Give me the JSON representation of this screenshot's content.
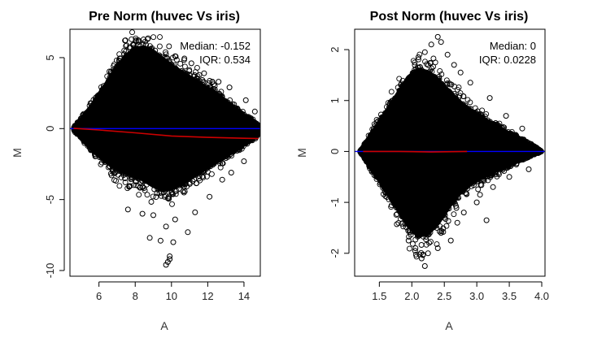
{
  "chart_data": [
    {
      "type": "scatter",
      "title": "Pre Norm (huvec Vs iris)",
      "xlabel": "A",
      "ylabel": "M",
      "xlim": [
        4.4,
        14.9
      ],
      "ylim": [
        -10.4,
        7.0
      ],
      "xticks": [
        6,
        8,
        10,
        12,
        14
      ],
      "yticks": [
        -10,
        -5,
        0,
        5
      ],
      "grid": false,
      "annotations": [
        "Median: -0.152",
        "IQR: 0.534"
      ],
      "cloud_envelope": {
        "x": [
          4.6,
          5.0,
          5.5,
          6.0,
          6.5,
          7.0,
          7.5,
          8.0,
          8.5,
          9.0,
          9.5,
          10.0,
          10.5,
          11.0,
          11.5,
          12.0,
          12.5,
          13.0,
          13.5,
          14.0,
          14.5,
          14.8
        ],
        "upper": [
          0.1,
          0.6,
          1.4,
          2.3,
          3.3,
          4.3,
          5.1,
          5.6,
          5.7,
          5.4,
          4.9,
          4.4,
          4.0,
          3.6,
          3.2,
          2.8,
          2.4,
          1.9,
          1.4,
          0.9,
          0.5,
          0.2
        ],
        "lower": [
          -0.1,
          -0.6,
          -1.3,
          -1.9,
          -2.4,
          -2.8,
          -3.1,
          -3.3,
          -3.6,
          -4.0,
          -4.3,
          -4.2,
          -3.9,
          -3.5,
          -3.1,
          -2.7,
          -2.3,
          -1.9,
          -1.5,
          -1.1,
          -0.7,
          -0.4
        ]
      },
      "outliers": [
        [
          9.7,
          -9.6
        ],
        [
          9.8,
          -9.4
        ],
        [
          9.9,
          -9.2
        ],
        [
          9.9,
          -9.0
        ],
        [
          10.1,
          -8.0
        ],
        [
          9.4,
          -7.9
        ],
        [
          8.8,
          -7.7
        ],
        [
          10.9,
          -7.3
        ],
        [
          9.7,
          -6.9
        ],
        [
          10.2,
          -6.4
        ],
        [
          9.0,
          -6.1
        ],
        [
          11.3,
          -5.9
        ],
        [
          7.6,
          -5.7
        ],
        [
          8.4,
          -6.0
        ],
        [
          12.1,
          -4.8
        ],
        [
          12.8,
          -3.6
        ],
        [
          13.3,
          -3.1
        ],
        [
          14.0,
          -2.3
        ],
        [
          8.2,
          6.1
        ],
        [
          8.6,
          5.9
        ],
        [
          9.1,
          5.5
        ],
        [
          10.2,
          5.1
        ],
        [
          11.1,
          4.6
        ],
        [
          11.8,
          3.9
        ],
        [
          12.6,
          3.3
        ],
        [
          13.2,
          2.9
        ],
        [
          14.1,
          2.0
        ],
        [
          14.6,
          1.2
        ],
        [
          11.4,
          3.5
        ],
        [
          12.2,
          2.6
        ],
        [
          7.1,
          4.8
        ],
        [
          6.6,
          3.6
        ]
      ],
      "series": [
        {
          "name": "",
          "color": "#0000ff",
          "style": "hline",
          "y": 0
        },
        {
          "name": "",
          "color": "#cc0000",
          "style": "line",
          "x": [
            4.6,
            6.0,
            8.0,
            10.0,
            12.0,
            14.0,
            14.8
          ],
          "y": [
            0.02,
            -0.1,
            -0.3,
            -0.52,
            -0.62,
            -0.68,
            -0.7
          ]
        }
      ]
    },
    {
      "type": "scatter",
      "title": "Post Norm (huvec Vs iris)",
      "xlabel": "A",
      "ylabel": "M",
      "xlim": [
        1.12,
        4.05
      ],
      "ylim": [
        -2.45,
        2.4
      ],
      "xticks": [
        1.5,
        2.0,
        2.5,
        3.0,
        3.5,
        4.0
      ],
      "xtick_labels": [
        "1.5",
        "2.0",
        "2.5",
        "3.0",
        "3.5",
        "4.0"
      ],
      "yticks": [
        -2,
        -1,
        0,
        1,
        2
      ],
      "grid": false,
      "annotations": [
        "Median: 0",
        "IQR: 0.0228"
      ],
      "cloud_envelope": {
        "x": [
          1.2,
          1.35,
          1.5,
          1.65,
          1.8,
          1.95,
          2.1,
          2.25,
          2.4,
          2.55,
          2.7,
          2.85,
          3.0,
          3.15,
          3.3,
          3.45,
          3.6,
          3.75,
          3.9,
          4.0
        ],
        "upper": [
          0.0,
          0.28,
          0.55,
          0.85,
          1.15,
          1.45,
          1.6,
          1.55,
          1.4,
          1.2,
          1.0,
          0.85,
          0.72,
          0.6,
          0.5,
          0.38,
          0.28,
          0.18,
          0.08,
          0.0
        ],
        "lower": [
          0.0,
          -0.28,
          -0.55,
          -0.85,
          -1.15,
          -1.45,
          -1.65,
          -1.6,
          -1.4,
          -1.1,
          -0.85,
          -0.68,
          -0.55,
          -0.45,
          -0.36,
          -0.28,
          -0.2,
          -0.12,
          -0.05,
          0.0
        ]
      },
      "outliers": [
        [
          2.4,
          2.25
        ],
        [
          2.45,
          2.15
        ],
        [
          2.3,
          2.1
        ],
        [
          2.2,
          1.95
        ],
        [
          2.55,
          1.9
        ],
        [
          2.1,
          1.85
        ],
        [
          2.65,
          1.7
        ],
        [
          2.75,
          1.55
        ],
        [
          2.9,
          1.35
        ],
        [
          3.2,
          1.05
        ],
        [
          3.45,
          0.7
        ],
        [
          3.7,
          0.45
        ],
        [
          2.2,
          -2.25
        ],
        [
          2.15,
          -2.1
        ],
        [
          2.25,
          -2.0
        ],
        [
          2.05,
          -1.95
        ],
        [
          2.4,
          -1.9
        ],
        [
          2.6,
          -1.75
        ],
        [
          2.45,
          -1.6
        ],
        [
          2.7,
          -1.4
        ],
        [
          3.0,
          -1.0
        ],
        [
          3.15,
          -1.35
        ],
        [
          3.05,
          -0.85
        ],
        [
          3.25,
          -0.7
        ],
        [
          3.5,
          -0.5
        ],
        [
          3.8,
          -0.35
        ],
        [
          1.95,
          -1.75
        ],
        [
          2.8,
          -1.2
        ]
      ],
      "series": [
        {
          "name": "",
          "color": "#0000ff",
          "style": "hline",
          "y": 0
        },
        {
          "name": "",
          "color": "#cc0000",
          "style": "line",
          "x": [
            1.25,
            1.8,
            2.3,
            2.85
          ],
          "y": [
            0.0,
            0.0,
            -0.01,
            0.0
          ]
        }
      ]
    }
  ]
}
